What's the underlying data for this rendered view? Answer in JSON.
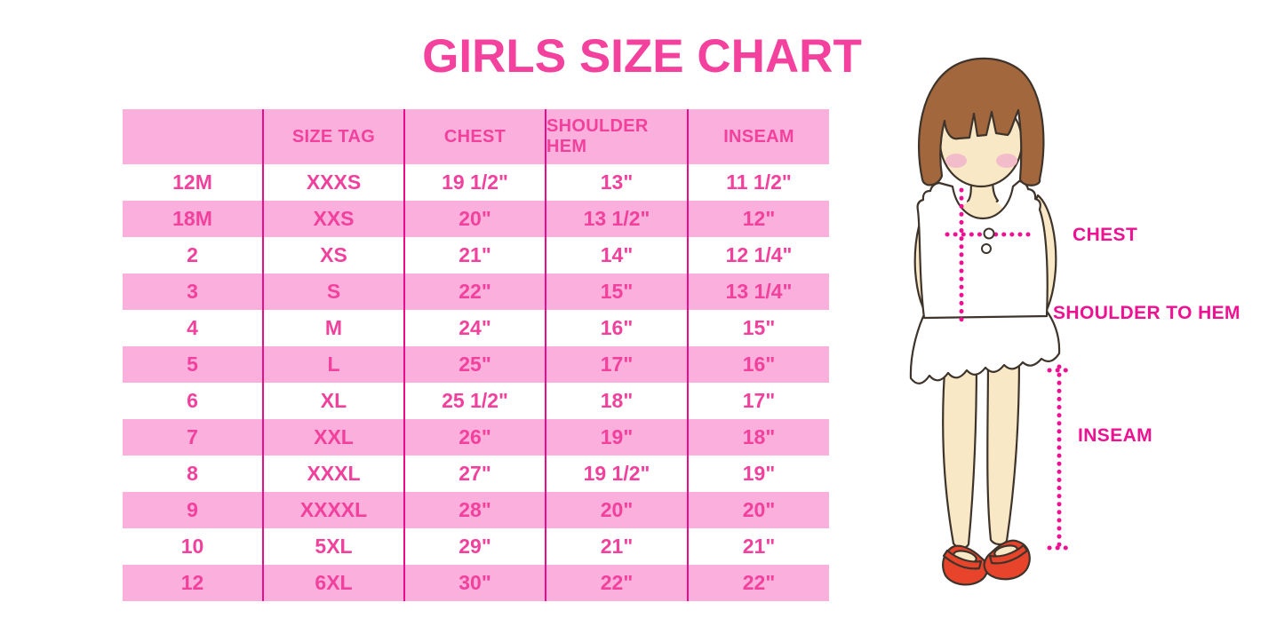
{
  "title": "GIRLS SIZE CHART",
  "colors": {
    "title_pink": "#F4419E",
    "row_pink": "#FBAFDC",
    "cell_text_pink": "#F2419D",
    "divider_magenta": "#E90D8C",
    "label_magenta": "#EE1192",
    "hair_brown": "#A2673C",
    "skin": "#F9E8C6",
    "blush": "#F3BCCB",
    "shoe_red": "#E8432B",
    "outline_dark": "#3E342B"
  },
  "table": {
    "headers": [
      "",
      "SIZE TAG",
      "CHEST",
      "SHOULDER HEM",
      "INSEAM"
    ],
    "rows": [
      [
        "12M",
        "XXXS",
        "19 1/2\"",
        "13\"",
        "11 1/2\""
      ],
      [
        "18M",
        "XXS",
        "20\"",
        "13 1/2\"",
        "12\""
      ],
      [
        "2",
        "XS",
        "21\"",
        "14\"",
        "12 1/4\""
      ],
      [
        "3",
        "S",
        "22\"",
        "15\"",
        "13 1/4\""
      ],
      [
        "4",
        "M",
        "24\"",
        "16\"",
        "15\""
      ],
      [
        "5",
        "L",
        "25\"",
        "17\"",
        "16\""
      ],
      [
        "6",
        "XL",
        "25 1/2\"",
        "18\"",
        "17\""
      ],
      [
        "7",
        "XXL",
        "26\"",
        "19\"",
        "18\""
      ],
      [
        "8",
        "XXXL",
        "27\"",
        "19 1/2\"",
        "19\""
      ],
      [
        "9",
        "XXXXL",
        "28\"",
        "20\"",
        "20\""
      ],
      [
        "10",
        "5XL",
        "29\"",
        "21\"",
        "21\""
      ],
      [
        "12",
        "6XL",
        "30\"",
        "22\"",
        "22\""
      ]
    ]
  },
  "figure": {
    "labels": {
      "chest": "CHEST",
      "shoulder_to_hem": "SHOULDER TO HEM",
      "inseam": "INSEAM"
    }
  }
}
